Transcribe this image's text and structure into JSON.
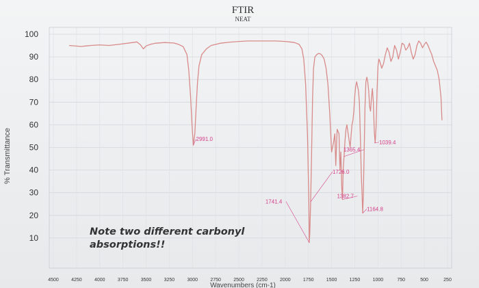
{
  "chart_data": {
    "type": "line",
    "title": "FTIR",
    "subtitle": "NEAT",
    "ylabel": "% Transmittance",
    "xlabel": "Wavenumbers (cm-1)",
    "xlim": [
      4500,
      250
    ],
    "ylim": [
      5,
      105
    ],
    "y_ticks": [
      100,
      90,
      80,
      70,
      60,
      50,
      40,
      30,
      20,
      10
    ],
    "x_ticks": [
      4500,
      4250,
      4000,
      3750,
      3500,
      3250,
      3000,
      2750,
      2500,
      2250,
      2000,
      1750,
      1500,
      1250,
      1000,
      750,
      500,
      250
    ],
    "grid": true,
    "line_color": "#d98a8a",
    "annotation_color": "#d4408a",
    "series": [
      {
        "x": [
          4330,
          4200,
          4100,
          4000,
          3900,
          3800,
          3700,
          3600,
          3560,
          3530,
          3500,
          3450,
          3400,
          3300,
          3200,
          3150,
          3100,
          3060,
          3040,
          3020,
          3005,
          2991,
          2975,
          2960,
          2945,
          2930,
          2900,
          2850,
          2800,
          2700,
          2600,
          2500,
          2400,
          2300,
          2200,
          2100,
          2000,
          1950,
          1900,
          1850,
          1820,
          1800,
          1780,
          1760,
          1745,
          1741.4,
          1735,
          1726,
          1715,
          1705,
          1695,
          1680,
          1660,
          1640,
          1620,
          1600,
          1580,
          1560,
          1540,
          1520,
          1500,
          1480,
          1465,
          1455,
          1440,
          1420,
          1410,
          1400,
          1390,
          1382.7,
          1375,
          1365.4,
          1355,
          1345,
          1335,
          1325,
          1310,
          1300,
          1290,
          1280,
          1270,
          1260,
          1250,
          1240,
          1230,
          1220,
          1210,
          1200,
          1190,
          1180,
          1170,
          1164.8,
          1158,
          1150,
          1140,
          1130,
          1120,
          1110,
          1100,
          1090,
          1080,
          1070,
          1060,
          1050,
          1039.4,
          1030,
          1020,
          1010,
          1000,
          990,
          980,
          960,
          940,
          920,
          900,
          880,
          860,
          840,
          820,
          800,
          780,
          760,
          740,
          720,
          700,
          680,
          660,
          640,
          620,
          600,
          580,
          560,
          540,
          520,
          500,
          480,
          460,
          440,
          420,
          400,
          380,
          360,
          340,
          320,
          310
        ],
        "y": [
          95.0,
          94.6,
          95.0,
          95.3,
          95.0,
          95.5,
          96.0,
          96.6,
          95.3,
          93.5,
          94.8,
          95.6,
          96.0,
          96.3,
          96.1,
          95.5,
          94.5,
          91.0,
          84.0,
          72.0,
          60.0,
          51.0,
          56.0,
          68.0,
          79.0,
          86.0,
          91.0,
          93.5,
          95.0,
          96.0,
          96.5,
          96.8,
          97.0,
          97.0,
          97.0,
          97.0,
          96.8,
          96.6,
          96.3,
          95.5,
          93.5,
          89.0,
          78.0,
          55.0,
          25.0,
          8.0,
          12.0,
          26.0,
          48.0,
          72.0,
          85.0,
          90.0,
          91.0,
          91.5,
          91.3,
          90.5,
          89.0,
          85.0,
          78.0,
          65.0,
          48.0,
          52.0,
          56.0,
          42.0,
          58.0,
          56.0,
          40.0,
          48.0,
          32.0,
          27.0,
          40.0,
          46.0,
          53.0,
          58.0,
          60.0,
          57.0,
          53.0,
          50.0,
          55.0,
          60.0,
          62.0,
          66.0,
          73.0,
          77.0,
          79.0,
          77.0,
          75.0,
          70.0,
          55.0,
          38.0,
          28.0,
          21.0,
          28.0,
          45.0,
          68.0,
          79.0,
          81.0,
          79.0,
          75.0,
          68.0,
          66.0,
          72.0,
          76.0,
          70.0,
          57.0,
          52.0,
          59.0,
          75.0,
          86.0,
          89.0,
          88.0,
          85.0,
          87.0,
          91.0,
          94.0,
          92.0,
          88.0,
          90.0,
          95.0,
          93.0,
          89.0,
          92.0,
          96.0,
          95.5,
          93.0,
          94.0,
          96.0,
          92.0,
          89.0,
          91.0,
          95.0,
          97.0,
          96.0,
          94.0,
          95.5,
          96.5,
          95.0,
          93.0,
          91.0,
          88.0,
          86.0,
          84.0,
          80.0,
          72.0,
          62.0
        ]
      }
    ],
    "peak_labels": [
      {
        "text": "2991.0",
        "x": 2991,
        "y": 51
      },
      {
        "text": "1741.4",
        "x": 1741.4,
        "y": 8
      },
      {
        "text": "1726.0",
        "x": 1726,
        "y": 26
      },
      {
        "text": "1365.4",
        "x": 1365.4,
        "y": 46
      },
      {
        "text": "1382.7",
        "x": 1382.7,
        "y": 27
      },
      {
        "text": "1164.8",
        "x": 1164.8,
        "y": 21
      },
      {
        "text": "1039.4",
        "x": 1039.4,
        "y": 52
      }
    ],
    "annotation": [
      "Note two different carbonyl",
      "absorptions!!"
    ]
  }
}
